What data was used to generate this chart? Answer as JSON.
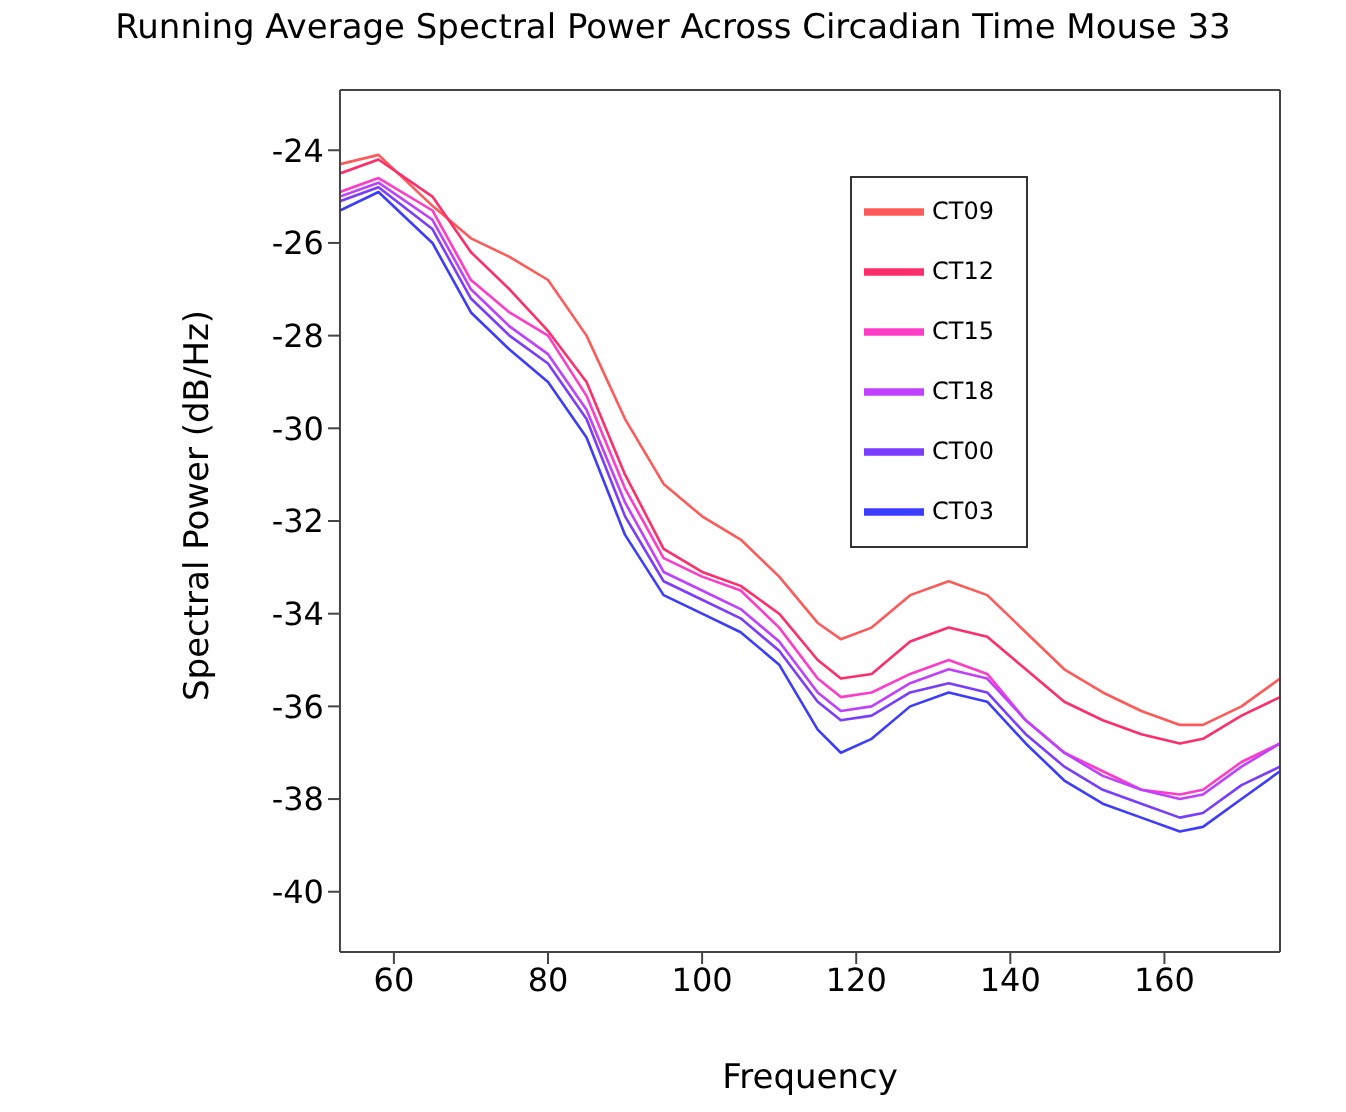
{
  "chart_data": {
    "type": "line",
    "title": "Running Average Spectral Power Across Circadian Time Mouse 33",
    "xlabel": "Frequency",
    "ylabel": "Spectral Power (dB/Hz)",
    "x": [
      53,
      58,
      65,
      70,
      75,
      80,
      85,
      90,
      95,
      100,
      105,
      110,
      115,
      118,
      122,
      127,
      132,
      137,
      142,
      147,
      152,
      157,
      162,
      165,
      170,
      175
    ],
    "series": [
      {
        "name": "CT09",
        "color": "#ff5a5a",
        "values": [
          -24.3,
          -24.1,
          -25.2,
          -25.9,
          -26.3,
          -26.8,
          -28.0,
          -29.8,
          -31.2,
          -31.9,
          -32.4,
          -33.2,
          -34.2,
          -34.55,
          -34.3,
          -33.6,
          -33.3,
          -33.6,
          -34.4,
          -35.2,
          -35.7,
          -36.1,
          -36.4,
          -36.4,
          -36.0,
          -35.4
        ]
      },
      {
        "name": "CT12",
        "color": "#ff2e6a",
        "values": [
          -24.5,
          -24.2,
          -25.0,
          -26.2,
          -27.0,
          -27.9,
          -29.0,
          -31.0,
          -32.6,
          -33.1,
          -33.4,
          -34.0,
          -35.0,
          -35.4,
          -35.3,
          -34.6,
          -34.3,
          -34.5,
          -35.2,
          -35.9,
          -36.3,
          -36.6,
          -36.8,
          -36.7,
          -36.2,
          -35.8
        ]
      },
      {
        "name": "CT15",
        "color": "#ff3cc8",
        "values": [
          -24.9,
          -24.6,
          -25.3,
          -26.8,
          -27.5,
          -28.0,
          -29.3,
          -31.3,
          -32.8,
          -33.2,
          -33.5,
          -34.3,
          -35.4,
          -35.8,
          -35.7,
          -35.3,
          -35.0,
          -35.3,
          -36.3,
          -37.0,
          -37.4,
          -37.8,
          -37.9,
          -37.8,
          -37.2,
          -36.8
        ]
      },
      {
        "name": "CT18",
        "color": "#c040ff",
        "values": [
          -25.0,
          -24.7,
          -25.5,
          -27.0,
          -27.8,
          -28.4,
          -29.6,
          -31.6,
          -33.1,
          -33.5,
          -33.9,
          -34.6,
          -35.7,
          -36.1,
          -36.0,
          -35.5,
          -35.2,
          -35.4,
          -36.3,
          -37.0,
          -37.5,
          -37.8,
          -38.0,
          -37.9,
          -37.3,
          -36.8
        ]
      },
      {
        "name": "CT00",
        "color": "#7a3cff",
        "values": [
          -25.1,
          -24.8,
          -25.7,
          -27.2,
          -28.0,
          -28.6,
          -29.8,
          -31.9,
          -33.3,
          -33.7,
          -34.1,
          -34.8,
          -35.9,
          -36.3,
          -36.2,
          -35.7,
          -35.5,
          -35.7,
          -36.6,
          -37.3,
          -37.8,
          -38.1,
          -38.4,
          -38.3,
          -37.7,
          -37.3
        ]
      },
      {
        "name": "CT03",
        "color": "#3c3cff",
        "values": [
          -25.3,
          -24.9,
          -26.0,
          -27.5,
          -28.3,
          -29.0,
          -30.2,
          -32.3,
          -33.6,
          -34.0,
          -34.4,
          -35.1,
          -36.5,
          -37.0,
          -36.7,
          -36.0,
          -35.7,
          -35.9,
          -36.8,
          -37.6,
          -38.1,
          -38.4,
          -38.7,
          -38.6,
          -38.0,
          -37.4
        ]
      }
    ],
    "xlim": [
      53,
      175
    ],
    "xticks": [
      60,
      80,
      100,
      120,
      140,
      160
    ],
    "ylim": [
      -41.3,
      -22.7
    ],
    "yticks": [
      -40,
      -38,
      -36,
      -34,
      -32,
      -30,
      -28,
      -26,
      -24
    ],
    "grid": false,
    "legend": "top right",
    "marker": "none",
    "line_style": "solid"
  }
}
